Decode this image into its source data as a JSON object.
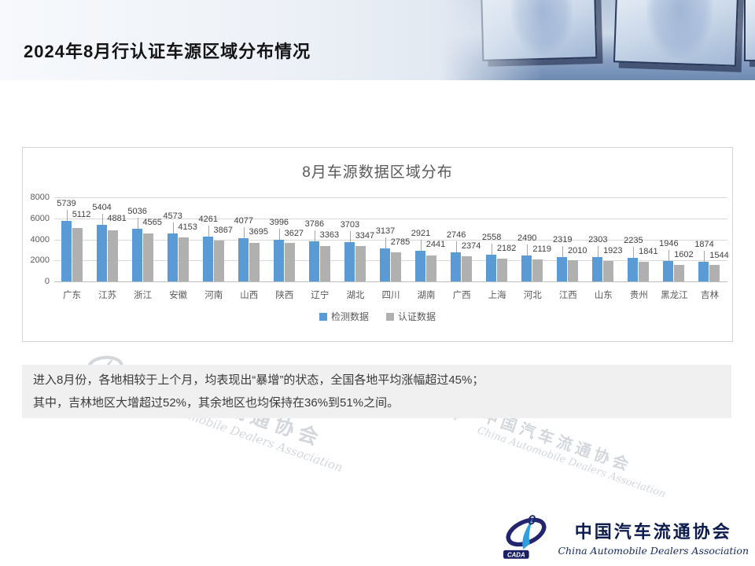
{
  "header": {
    "title": "2024年8月行认证车源区域分布情况"
  },
  "chart_data": {
    "type": "bar",
    "title": "8月车源数据区域分布",
    "categories": [
      "广东",
      "江苏",
      "浙江",
      "安徽",
      "河南",
      "山西",
      "陕西",
      "辽宁",
      "湖北",
      "四川",
      "湖南",
      "广西",
      "上海",
      "河北",
      "江西",
      "山东",
      "贵州",
      "黑龙江",
      "吉林"
    ],
    "series": [
      {
        "name": "检测数据",
        "color": "#5B9BD5",
        "values": [
          5739,
          5404,
          5036,
          4573,
          4261,
          4077,
          3996,
          3786,
          3703,
          3137,
          2921,
          2746,
          2558,
          2490,
          2319,
          2303,
          2235,
          1946,
          1874
        ]
      },
      {
        "name": "认证数据",
        "color": "#B0B0B0",
        "values": [
          5112,
          4881,
          4565,
          4153,
          3867,
          3695,
          3627,
          3363,
          3347,
          2785,
          2441,
          2374,
          2182,
          2119,
          2010,
          1923,
          1841,
          1602,
          1544
        ]
      }
    ],
    "xlabel": "",
    "ylabel": "",
    "ylim": [
      0,
      8000
    ],
    "y_step": 2000,
    "grid": true,
    "legend_position": "bottom",
    "data_labels": true
  },
  "summary": {
    "line1": "进入8月份，各地相较于上个月，均表现出“暴增”的状态，全国各地平均涨幅超过45%；",
    "line2": "其中，吉林地区大增超过52%，其余地区也均保持在36%到51%之间。"
  },
  "watermark": {
    "cn": "中国汽车流通协会",
    "en": "China Automobile Dealers Association"
  },
  "footer": {
    "abbr": "CADA",
    "cn": "中国汽车流通协会",
    "en": "China Automobile Dealers Association"
  },
  "colors": {
    "series1": "#5B9BD5",
    "series2": "#B0B0B0",
    "gridline": "#D9D9D9",
    "summary_bg": "#F0F0F0"
  }
}
